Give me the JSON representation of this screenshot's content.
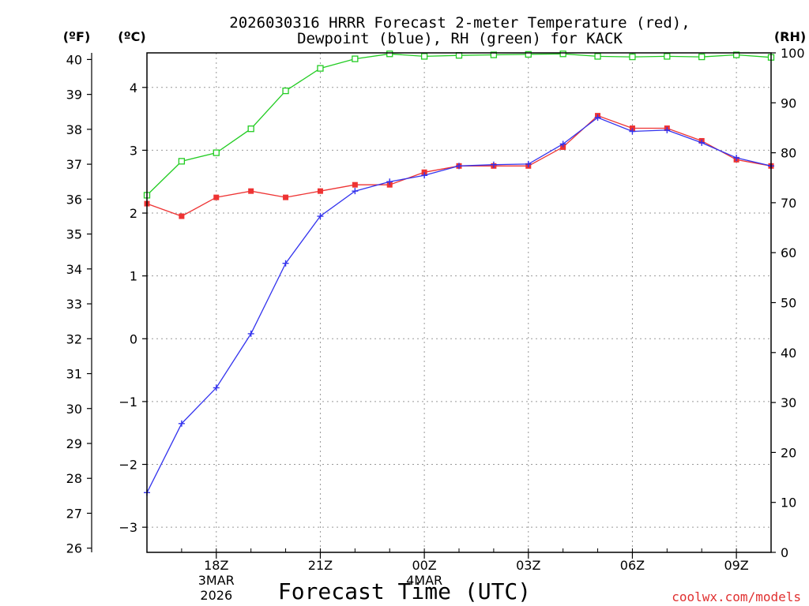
{
  "chart_data": {
    "type": "line",
    "title": "2026030316 HRRR Forecast 2-meter Temperature (red),",
    "subtitle": "Dewpoint (blue), RH (green) for KACK",
    "xlabel": "Forecast Time (UTC)",
    "watermark": "coolwx.com/models",
    "unit_labels": {
      "f": "(ºF)",
      "c": "(ºC)",
      "rh": "(RH)"
    },
    "x_hours": [
      16,
      17,
      18,
      19,
      20,
      21,
      22,
      23,
      24,
      25,
      26,
      27,
      28,
      29,
      30,
      31,
      32,
      33,
      34
    ],
    "xlim": [
      16,
      34
    ],
    "x_ticks": [
      {
        "x": 18,
        "lines": [
          "18Z",
          "3MAR",
          "2026"
        ]
      },
      {
        "x": 21,
        "lines": [
          "21Z"
        ]
      },
      {
        "x": 24,
        "lines": [
          "00Z",
          "4MAR"
        ]
      },
      {
        "x": 27,
        "lines": [
          "03Z"
        ]
      },
      {
        "x": 30,
        "lines": [
          "06Z"
        ]
      },
      {
        "x": 33,
        "lines": [
          "09Z"
        ]
      }
    ],
    "axes": {
      "celsius": {
        "lim": [
          -3.4,
          4.55
        ],
        "ticks": [
          "-3",
          "-2",
          "-1",
          "0",
          "1",
          "2",
          "3",
          "4"
        ]
      },
      "fahrenheit": {
        "lim": [
          25.88,
          40.19
        ],
        "ticks": [
          "26",
          "27",
          "28",
          "29",
          "30",
          "31",
          "32",
          "33",
          "34",
          "35",
          "36",
          "37",
          "38",
          "39",
          "40"
        ]
      },
      "rh": {
        "lim": [
          0,
          100
        ],
        "ticks": [
          "0",
          "10",
          "20",
          "30",
          "40",
          "50",
          "60",
          "70",
          "80",
          "90",
          "100"
        ]
      }
    },
    "grid": true,
    "series": [
      {
        "name": "Temperature",
        "axis": "celsius",
        "color": "#ee3333",
        "marker": "filled-square",
        "values": [
          2.15,
          1.95,
          2.25,
          2.35,
          2.25,
          2.35,
          2.45,
          2.45,
          2.65,
          2.75,
          2.75,
          2.75,
          3.05,
          3.55,
          3.35,
          3.35,
          3.15,
          2.85,
          2.75
        ]
      },
      {
        "name": "Dewpoint",
        "axis": "celsius",
        "color": "#3333ee",
        "marker": "plus",
        "values": [
          -2.45,
          -1.35,
          -0.78,
          0.08,
          1.2,
          1.95,
          2.35,
          2.5,
          2.6,
          2.75,
          2.77,
          2.78,
          3.1,
          3.52,
          3.3,
          3.32,
          3.12,
          2.88,
          2.75
        ]
      },
      {
        "name": "RH",
        "axis": "rh",
        "color": "#22cc22",
        "marker": "open-square",
        "values": [
          71.5,
          78.3,
          80.0,
          84.8,
          92.4,
          96.9,
          98.8,
          99.8,
          99.3,
          99.5,
          99.6,
          99.7,
          99.8,
          99.3,
          99.2,
          99.3,
          99.2,
          99.6,
          99.1
        ]
      }
    ]
  }
}
